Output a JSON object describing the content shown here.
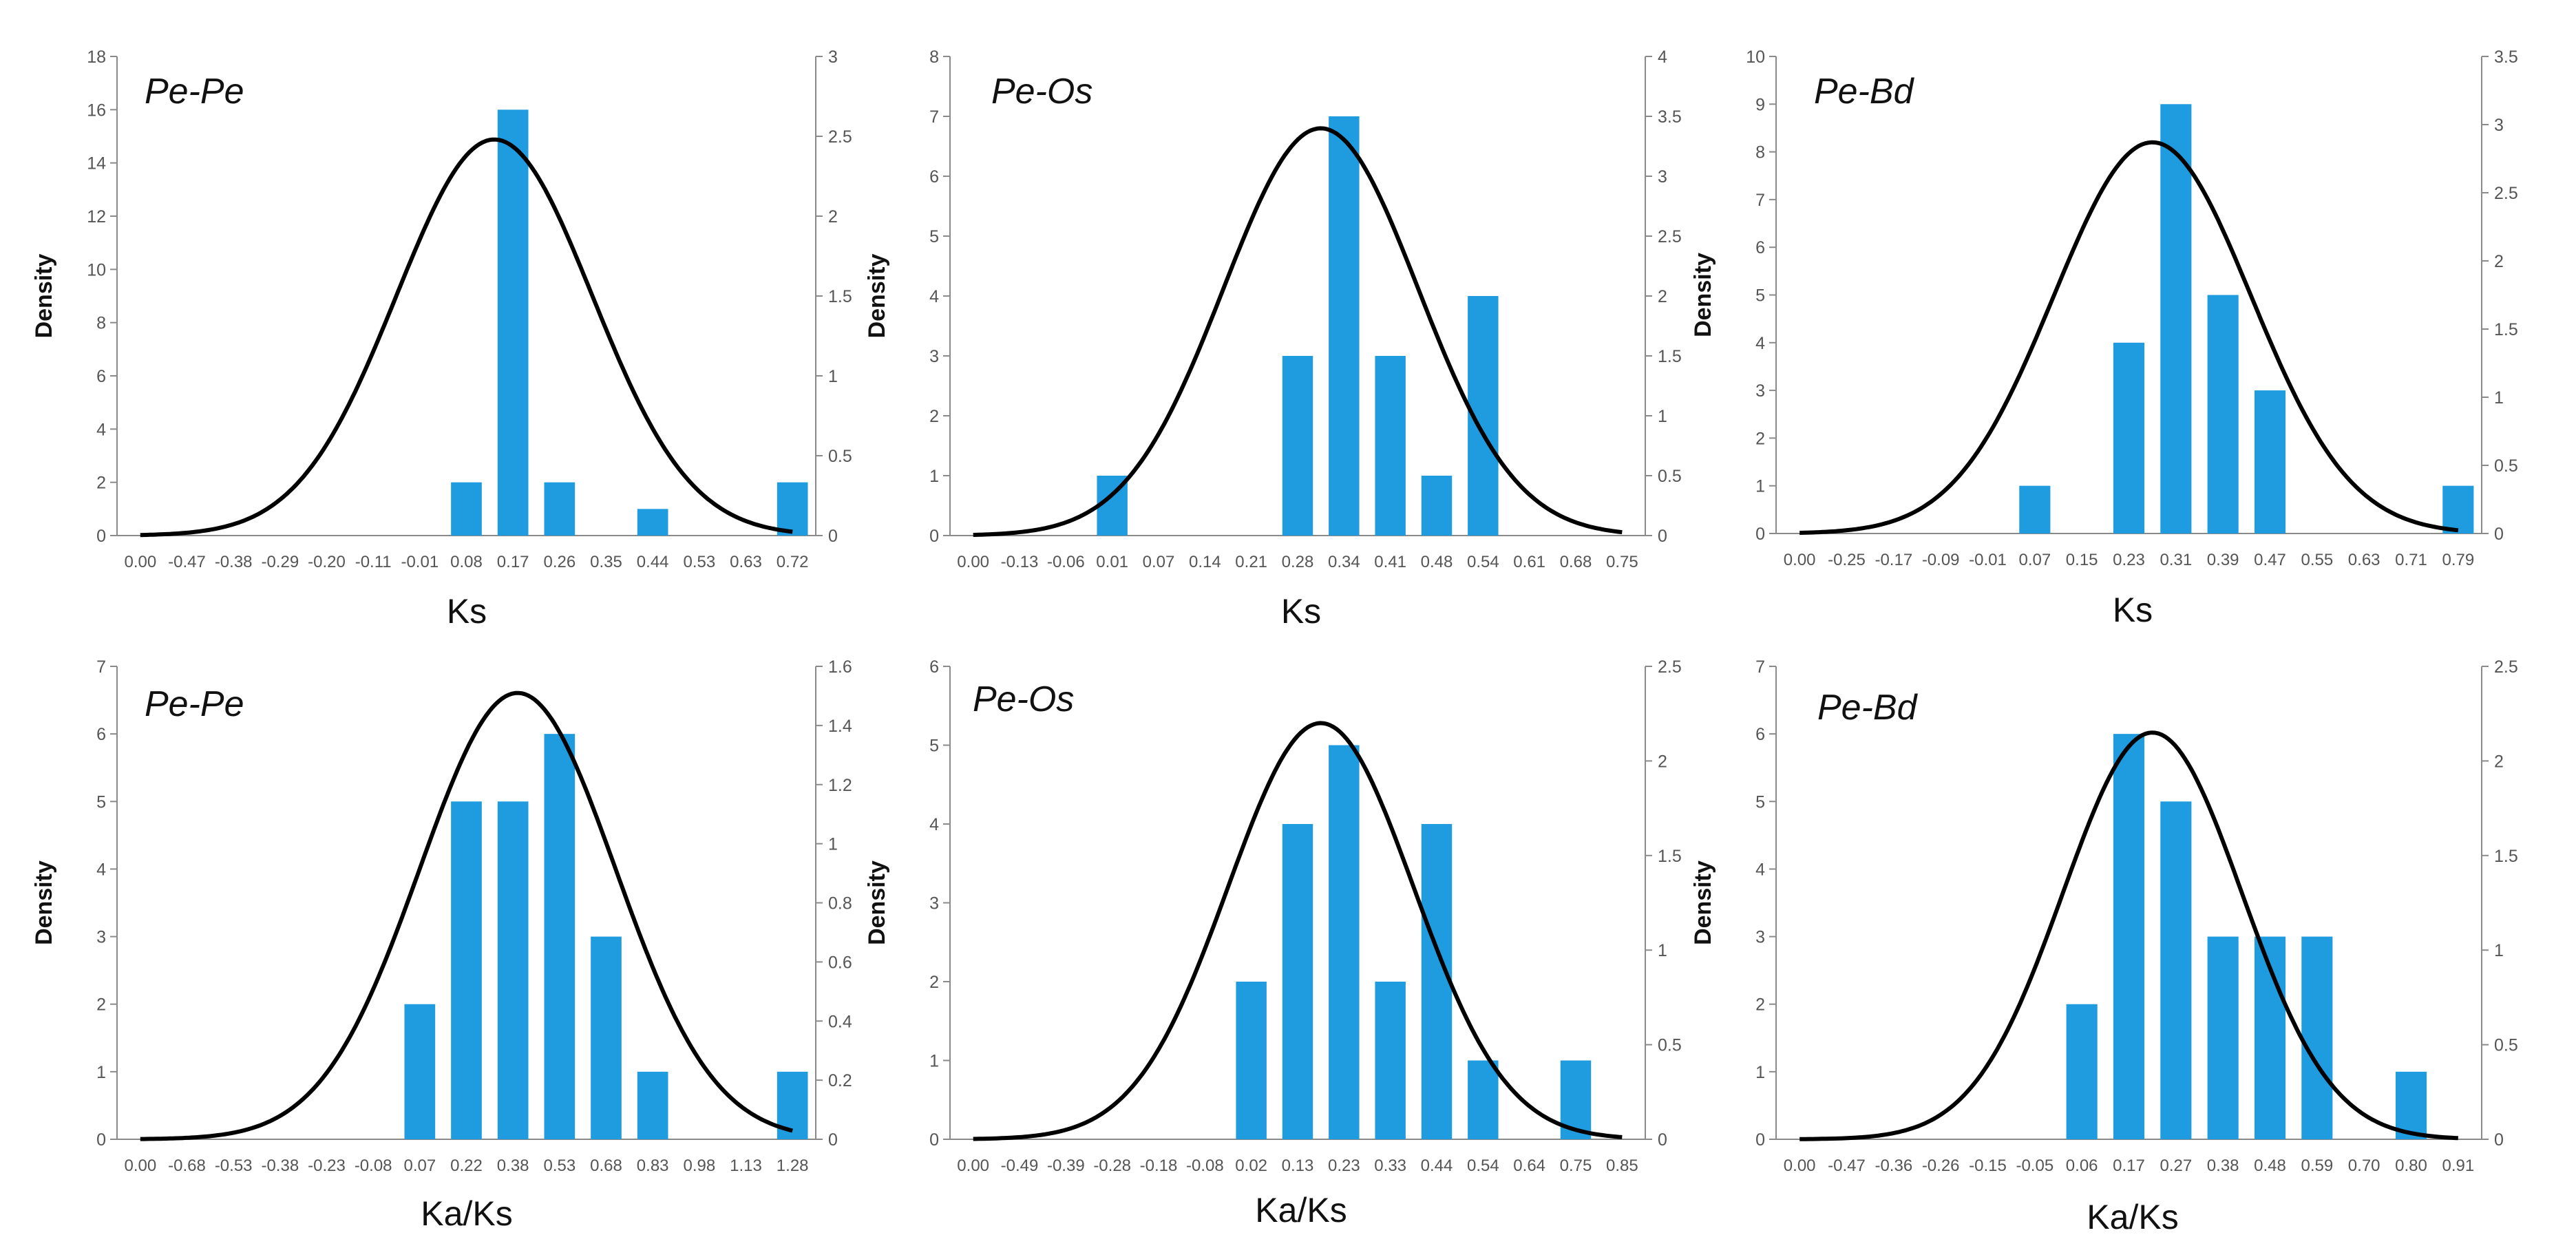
{
  "colors": {
    "bar": "#1f9be0",
    "curve": "#000000",
    "axis": "#8a8a8a",
    "text": "#555555"
  },
  "chart_data": [
    {
      "type": "bar",
      "title": "Pe-Pe",
      "xlabel": "Ks",
      "ylabel": "Density",
      "ylim": [
        0,
        18
      ],
      "ytick_step": 2,
      "y2lim": [
        0,
        3
      ],
      "y2tick_step": 0.5,
      "categories": [
        "0.00",
        "-0.47",
        "-0.38",
        "-0.29",
        "-0.20",
        "-0.11",
        "-0.01",
        "0.08",
        "0.17",
        "0.26",
        "0.35",
        "0.44",
        "0.53",
        "0.63",
        "0.72"
      ],
      "values": [
        0,
        0,
        0,
        0,
        0,
        0,
        0,
        2,
        16,
        2,
        0,
        1,
        0,
        0,
        2
      ],
      "curve": {
        "center": 8.1,
        "sd": 2.1,
        "peak": 2.48
      }
    },
    {
      "type": "bar",
      "title": "Pe-Os",
      "xlabel": "Ks",
      "ylabel": "Density",
      "ylim": [
        0,
        8
      ],
      "ytick_step": 1,
      "y2lim": [
        0,
        4
      ],
      "y2tick_step": 0.5,
      "categories": [
        "0.00",
        "-0.13",
        "-0.06",
        "0.01",
        "0.07",
        "0.14",
        "0.21",
        "0.28",
        "0.34",
        "0.41",
        "0.48",
        "0.54",
        "0.61",
        "0.68",
        "0.75"
      ],
      "values": [
        0,
        0,
        0,
        1,
        0,
        0,
        0,
        3,
        7,
        3,
        1,
        4,
        0,
        0,
        0
      ],
      "curve": {
        "center": 8.0,
        "sd": 2.1,
        "peak": 3.4
      }
    },
    {
      "type": "bar",
      "title": "Pe-Bd",
      "xlabel": "Ks",
      "ylabel": "Density",
      "ylim": [
        0,
        10
      ],
      "ytick_step": 1,
      "y2lim": [
        0,
        3.5
      ],
      "y2tick_step": 0.5,
      "categories": [
        "0.00",
        "-0.25",
        "-0.17",
        "-0.09",
        "-0.01",
        "0.07",
        "0.15",
        "0.23",
        "0.31",
        "0.39",
        "0.47",
        "0.55",
        "0.63",
        "0.71",
        "0.79"
      ],
      "values": [
        0,
        0,
        0,
        0,
        0,
        1,
        0,
        4,
        9,
        5,
        3,
        0,
        0,
        0,
        1
      ],
      "curve": {
        "center": 8.0,
        "sd": 2.1,
        "peak": 2.87
      }
    },
    {
      "type": "bar",
      "title": "Pe-Pe",
      "xlabel": "Ka/Ks",
      "ylabel": "Density",
      "ylim": [
        0,
        7
      ],
      "ytick_step": 1,
      "y2lim": [
        0,
        1.6
      ],
      "y2tick_step": 0.2,
      "categories": [
        "0.00",
        "-0.68",
        "-0.53",
        "-0.38",
        "-0.23",
        "-0.08",
        "0.07",
        "0.22",
        "0.38",
        "0.53",
        "0.68",
        "0.83",
        "0.98",
        "1.13",
        "1.28"
      ],
      "values": [
        0,
        0,
        0,
        0,
        0,
        0,
        2,
        5,
        5,
        6,
        3,
        1,
        0,
        0,
        1
      ],
      "curve": {
        "center": 8.6,
        "sd": 2.1,
        "peak": 1.51
      }
    },
    {
      "type": "bar",
      "title": "Pe-Os",
      "xlabel": "Ka/Ks",
      "ylabel": "Density",
      "ylim": [
        0,
        6
      ],
      "ytick_step": 1,
      "y2lim": [
        0,
        2.5
      ],
      "y2tick_step": 0.5,
      "categories": [
        "0.00",
        "-0.49",
        "-0.39",
        "-0.28",
        "-0.18",
        "-0.08",
        "0.02",
        "0.13",
        "0.23",
        "0.33",
        "0.44",
        "0.54",
        "0.64",
        "0.75",
        "0.85"
      ],
      "values": [
        0,
        0,
        0,
        0,
        0,
        0,
        2,
        4,
        5,
        2,
        4,
        1,
        0,
        1,
        0
      ],
      "curve": {
        "center": 8.0,
        "sd": 2.0,
        "peak": 2.2
      }
    },
    {
      "type": "bar",
      "title": "Pe-Bd",
      "xlabel": "Ka/Ks",
      "ylabel": "Density",
      "ylim": [
        0,
        7
      ],
      "ytick_step": 1,
      "y2lim": [
        0,
        2.5
      ],
      "y2tick_step": 0.5,
      "categories": [
        "0.00",
        "-0.47",
        "-0.36",
        "-0.26",
        "-0.15",
        "-0.05",
        "0.06",
        "0.17",
        "0.27",
        "0.38",
        "0.48",
        "0.59",
        "0.70",
        "0.80",
        "0.91"
      ],
      "values": [
        0,
        0,
        0,
        0,
        0,
        0,
        2,
        6,
        5,
        3,
        3,
        3,
        0,
        1,
        0
      ],
      "curve": {
        "center": 8.0,
        "sd": 1.9,
        "peak": 2.15
      }
    }
  ]
}
